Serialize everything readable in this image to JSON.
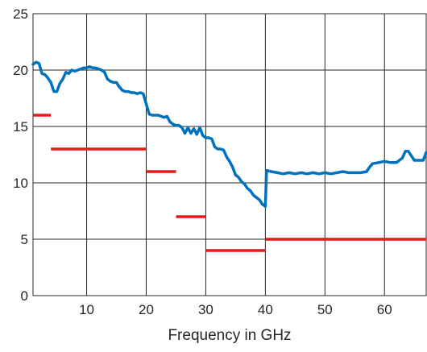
{
  "chart_data": {
    "type": "line",
    "title": "",
    "xlabel": "Frequency in GHz",
    "ylabel": "",
    "xlim": [
      1,
      67
    ],
    "ylim": [
      0,
      25
    ],
    "xticks": [
      10,
      20,
      30,
      40,
      50,
      60
    ],
    "yticks": [
      0,
      5,
      10,
      15,
      20,
      25
    ],
    "grid": true,
    "series": [
      {
        "name": "",
        "color": "#0072BD",
        "x": [
          1.0,
          1.5,
          2.0,
          2.5,
          3.0,
          3.5,
          4.0,
          4.5,
          5.0,
          5.5,
          6.0,
          6.5,
          7.0,
          7.5,
          8.0,
          8.5,
          9.0,
          9.5,
          10.0,
          10.5,
          11.0,
          11.5,
          12.0,
          12.5,
          13.0,
          13.5,
          14.0,
          14.5,
          15.0,
          15.5,
          16.0,
          16.5,
          17.0,
          17.5,
          18.0,
          18.5,
          19.0,
          19.5,
          20.0,
          20.5,
          21.0,
          21.5,
          22.0,
          22.5,
          23.0,
          23.5,
          24.0,
          24.5,
          25.0,
          25.5,
          26.0,
          26.5,
          27.0,
          27.5,
          28.0,
          28.5,
          29.0,
          29.5,
          30.0,
          30.5,
          31.0,
          31.5,
          32.0,
          32.5,
          33.0,
          33.5,
          34.0,
          34.5,
          35.0,
          35.5,
          36.0,
          36.5,
          37.0,
          37.5,
          38.0,
          38.5,
          39.0,
          39.5,
          39.8,
          40.0,
          40.2,
          41.0,
          42.0,
          43.0,
          44.0,
          45.0,
          46.0,
          47.0,
          48.0,
          49.0,
          50.0,
          51.0,
          52.0,
          53.0,
          54.0,
          55.0,
          56.0,
          57.0,
          57.5,
          58.0,
          59.0,
          60.0,
          61.0,
          62.0,
          62.5,
          63.0,
          63.5,
          64.0,
          65.0,
          66.0,
          66.5,
          67.0
        ],
        "y": [
          20.5,
          20.7,
          20.6,
          19.7,
          19.6,
          19.3,
          18.9,
          18.1,
          18.1,
          18.8,
          19.2,
          19.8,
          19.7,
          20.0,
          19.9,
          20.0,
          20.1,
          20.2,
          20.2,
          20.3,
          20.2,
          20.2,
          20.1,
          20.0,
          19.8,
          19.2,
          19.0,
          18.9,
          18.9,
          18.5,
          18.2,
          18.1,
          18.1,
          18.0,
          18.0,
          17.9,
          18.0,
          17.9,
          17.0,
          16.1,
          16.0,
          16.0,
          16.0,
          15.9,
          15.8,
          15.9,
          15.4,
          15.2,
          15.1,
          15.1,
          14.9,
          14.4,
          14.9,
          14.4,
          14.8,
          14.3,
          14.9,
          14.2,
          14.0,
          14.0,
          13.9,
          13.2,
          13.0,
          13.0,
          12.9,
          12.3,
          11.9,
          11.4,
          10.7,
          10.5,
          10.1,
          9.9,
          9.5,
          9.3,
          8.9,
          8.7,
          8.5,
          8.1,
          8.0,
          7.9,
          11.1,
          11.0,
          10.9,
          10.8,
          10.9,
          10.8,
          10.9,
          10.8,
          10.9,
          10.8,
          10.9,
          10.8,
          10.9,
          11.0,
          10.9,
          10.9,
          10.9,
          11.0,
          11.4,
          11.7,
          11.8,
          11.9,
          11.8,
          11.8,
          12.0,
          12.2,
          12.8,
          12.8,
          12.0,
          12.0,
          12.0,
          12.7
        ]
      },
      {
        "name": "",
        "color": "#E41A1C",
        "type": "step-segments",
        "segments": [
          {
            "x": [
              1,
              4
            ],
            "y": 16
          },
          {
            "x": [
              4,
              20
            ],
            "y": 13
          },
          {
            "x": [
              20,
              25
            ],
            "y": 11
          },
          {
            "x": [
              25,
              30
            ],
            "y": 7
          },
          {
            "x": [
              30,
              40
            ],
            "y": 4
          },
          {
            "x": [
              40,
              67
            ],
            "y": 5
          }
        ]
      }
    ]
  }
}
